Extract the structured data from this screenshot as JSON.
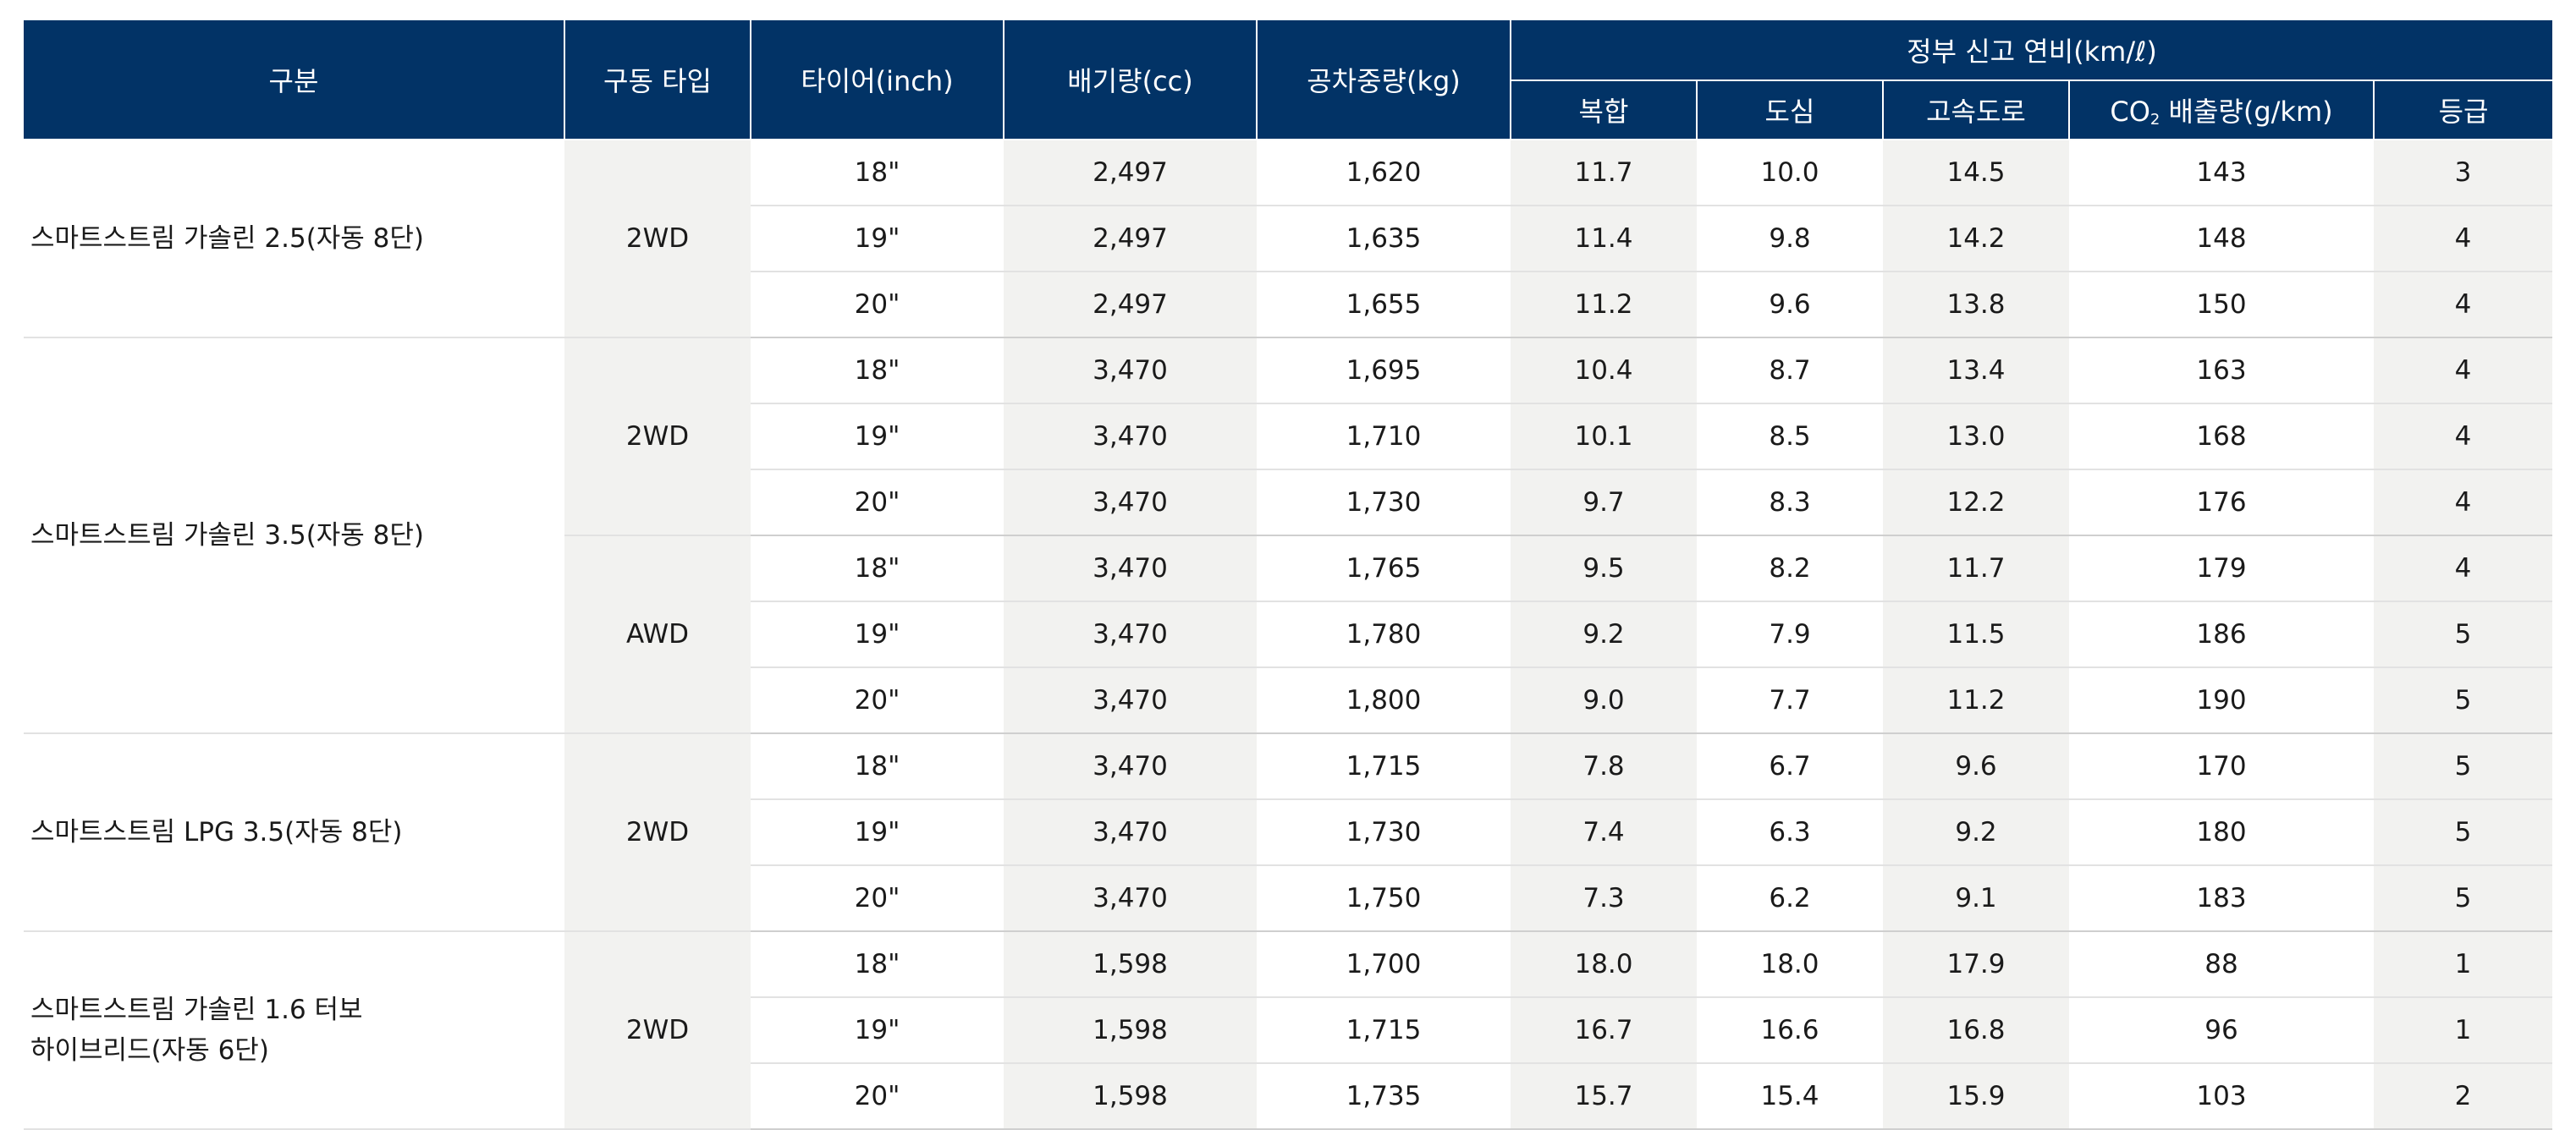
{
  "headers": {
    "grade": "구분",
    "drive": "구동 타입",
    "tire": "타이어(inch)",
    "displacement": "배기량(cc)",
    "weight": "공차중량(kg)",
    "fuel_group": "정부 신고 연비(km/ℓ)",
    "combined": "복합",
    "city": "도심",
    "highway": "고속도로",
    "co2_prefix": "CO",
    "co2_sub": "2",
    "co2_suffix": " 배출량(g/km)",
    "rating": "등급"
  },
  "groups": [
    {
      "name": "스마트스트림 가솔린 2.5(자동 8단)",
      "drives": [
        {
          "drive": "2WD",
          "rows": [
            {
              "tire": "18\"",
              "displacement": "2,497",
              "weight": "1,620",
              "combined": "11.7",
              "city": "10.0",
              "highway": "14.5",
              "co2": "143",
              "rating": "3"
            },
            {
              "tire": "19\"",
              "displacement": "2,497",
              "weight": "1,635",
              "combined": "11.4",
              "city": "9.8",
              "highway": "14.2",
              "co2": "148",
              "rating": "4"
            },
            {
              "tire": "20\"",
              "displacement": "2,497",
              "weight": "1,655",
              "combined": "11.2",
              "city": "9.6",
              "highway": "13.8",
              "co2": "150",
              "rating": "4"
            }
          ]
        }
      ]
    },
    {
      "name": "스마트스트림 가솔린 3.5(자동 8단)",
      "drives": [
        {
          "drive": "2WD",
          "rows": [
            {
              "tire": "18\"",
              "displacement": "3,470",
              "weight": "1,695",
              "combined": "10.4",
              "city": "8.7",
              "highway": "13.4",
              "co2": "163",
              "rating": "4"
            },
            {
              "tire": "19\"",
              "displacement": "3,470",
              "weight": "1,710",
              "combined": "10.1",
              "city": "8.5",
              "highway": "13.0",
              "co2": "168",
              "rating": "4"
            },
            {
              "tire": "20\"",
              "displacement": "3,470",
              "weight": "1,730",
              "combined": "9.7",
              "city": "8.3",
              "highway": "12.2",
              "co2": "176",
              "rating": "4"
            }
          ]
        },
        {
          "drive": "AWD",
          "rows": [
            {
              "tire": "18\"",
              "displacement": "3,470",
              "weight": "1,765",
              "combined": "9.5",
              "city": "8.2",
              "highway": "11.7",
              "co2": "179",
              "rating": "4"
            },
            {
              "tire": "19\"",
              "displacement": "3,470",
              "weight": "1,780",
              "combined": "9.2",
              "city": "7.9",
              "highway": "11.5",
              "co2": "186",
              "rating": "5"
            },
            {
              "tire": "20\"",
              "displacement": "3,470",
              "weight": "1,800",
              "combined": "9.0",
              "city": "7.7",
              "highway": "11.2",
              "co2": "190",
              "rating": "5"
            }
          ]
        }
      ]
    },
    {
      "name": "스마트스트림 LPG 3.5(자동 8단)",
      "drives": [
        {
          "drive": "2WD",
          "rows": [
            {
              "tire": "18\"",
              "displacement": "3,470",
              "weight": "1,715",
              "combined": "7.8",
              "city": "6.7",
              "highway": "9.6",
              "co2": "170",
              "rating": "5"
            },
            {
              "tire": "19\"",
              "displacement": "3,470",
              "weight": "1,730",
              "combined": "7.4",
              "city": "6.3",
              "highway": "9.2",
              "co2": "180",
              "rating": "5"
            },
            {
              "tire": "20\"",
              "displacement": "3,470",
              "weight": "1,750",
              "combined": "7.3",
              "city": "6.2",
              "highway": "9.1",
              "co2": "183",
              "rating": "5"
            }
          ]
        }
      ]
    },
    {
      "name": "스마트스트림 가솔린 1.6 터보\n하이브리드(자동 6단)",
      "drives": [
        {
          "drive": "2WD",
          "rows": [
            {
              "tire": "18\"",
              "displacement": "1,598",
              "weight": "1,700",
              "combined": "18.0",
              "city": "18.0",
              "highway": "17.9",
              "co2": "88",
              "rating": "1"
            },
            {
              "tire": "19\"",
              "displacement": "1,598",
              "weight": "1,715",
              "combined": "16.7",
              "city": "16.6",
              "highway": "16.8",
              "co2": "96",
              "rating": "1"
            },
            {
              "tire": "20\"",
              "displacement": "1,598",
              "weight": "1,735",
              "combined": "15.7",
              "city": "15.4",
              "highway": "15.9",
              "co2": "103",
              "rating": "2"
            }
          ]
        }
      ]
    }
  ]
}
